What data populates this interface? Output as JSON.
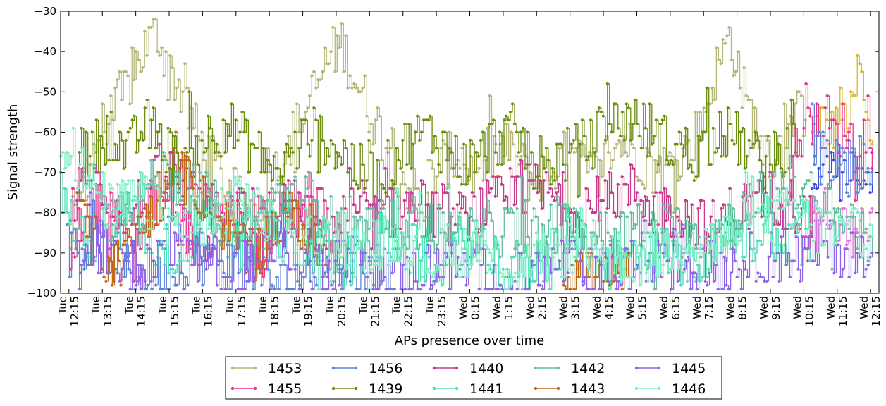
{
  "chart_data": {
    "type": "line",
    "title": "",
    "xlabel": "APs presence over time",
    "ylabel": "Signal strength",
    "ylim": [
      -100,
      -30
    ],
    "yticks": [
      -30,
      -40,
      -50,
      -60,
      -70,
      -80,
      -90,
      -100
    ],
    "x_range_hours": [
      12.0,
      36.5
    ],
    "xticks": [
      {
        "day": "Tue",
        "time": "12:15"
      },
      {
        "day": "Tue",
        "time": "13:15"
      },
      {
        "day": "Tue",
        "time": "14:15"
      },
      {
        "day": "Tue",
        "time": "15:15"
      },
      {
        "day": "Tue",
        "time": "16:15"
      },
      {
        "day": "Tue",
        "time": "17:15"
      },
      {
        "day": "Tue",
        "time": "18:15"
      },
      {
        "day": "Tue",
        "time": "19:15"
      },
      {
        "day": "Tue",
        "time": "20:15"
      },
      {
        "day": "Tue",
        "time": "21:15"
      },
      {
        "day": "Tue",
        "time": "22:15"
      },
      {
        "day": "Tue",
        "time": "23:15"
      },
      {
        "day": "Wed",
        "time": "0:15"
      },
      {
        "day": "Wed",
        "time": "1:15"
      },
      {
        "day": "Wed",
        "time": "2:15"
      },
      {
        "day": "Wed",
        "time": "3:15"
      },
      {
        "day": "Wed",
        "time": "4:15"
      },
      {
        "day": "Wed",
        "time": "5:15"
      },
      {
        "day": "Wed",
        "time": "6:15"
      },
      {
        "day": "Wed",
        "time": "7:15"
      },
      {
        "day": "Wed",
        "time": "8:15"
      },
      {
        "day": "Wed",
        "time": "9:15"
      },
      {
        "day": "Wed",
        "time": "10:15"
      },
      {
        "day": "Wed",
        "time": "11:15"
      },
      {
        "day": "Wed",
        "time": "12:15"
      }
    ],
    "grid": false,
    "legend_position": "bottom-center",
    "series": [
      {
        "name": "1453",
        "color": "#b5b87a",
        "segments": [
          {
            "start": 12.3,
            "end": 23.0,
            "values": [
              -85,
              -72,
              -60,
              -55,
              -48,
              -40,
              -35,
              -45,
              -52,
              -62,
              -68,
              -75,
              -78,
              -80,
              -72,
              -65,
              -58,
              -50,
              -42,
              -38,
              -48,
              -55,
              -62,
              -70,
              -75,
              -80
            ]
          },
          {
            "start": 23.0,
            "end": 34.3,
            "values": [
              -72,
              -68,
              -65,
              -70,
              -66,
              -64,
              -68,
              -72,
              -70,
              -66,
              -68,
              -70,
              -65,
              -62,
              -66,
              -70,
              -68,
              -64,
              -60,
              -45,
              -36,
              -52,
              -62,
              -66,
              -58,
              -54
            ]
          }
        ]
      },
      {
        "name": "1455",
        "color": "#e8348e",
        "segments": [
          {
            "start": 12.3,
            "end": 20.0,
            "values": [
              -88,
              -82,
              -78,
              -85,
              -90,
              -80,
              -76,
              -84,
              -88,
              -82,
              -78,
              -86,
              -90,
              -84,
              -80,
              -76,
              -82
            ]
          },
          {
            "start": 33.8,
            "end": 36.3,
            "values": [
              -72,
              -62,
              -58,
              -60,
              -56,
              -62,
              -58,
              -64,
              -60,
              -62
            ]
          }
        ]
      },
      {
        "name": "1456",
        "color": "#5b87d6",
        "segments": [
          {
            "start": 12.2,
            "end": 22.0,
            "values": [
              -90,
              -88,
              -94,
              -96,
              -92,
              -90,
              -94,
              -98,
              -96,
              -92,
              -94,
              -96
            ]
          },
          {
            "start": 34.5,
            "end": 36.3,
            "values": [
              -60,
              -66,
              -68,
              -70,
              -66,
              -72,
              -68,
              -70,
              -66
            ]
          }
        ]
      },
      {
        "name": "1439",
        "color": "#6b8e10",
        "segments": [
          {
            "start": 12.5,
            "end": 34.0,
            "values": [
              -70,
              -64,
              -60,
              -66,
              -58,
              -62,
              -68,
              -64,
              -60,
              -58,
              -62,
              -66,
              -70,
              -64,
              -60,
              -62,
              -66,
              -70,
              -72,
              -66,
              -62,
              -60,
              -64,
              -68,
              -66,
              -62,
              -60,
              -64,
              -68,
              -66,
              -64,
              -62,
              -58,
              -56,
              -60,
              -62,
              -64,
              -66,
              -62,
              -60,
              -64,
              -68,
              -66,
              -62
            ]
          }
        ]
      },
      {
        "name": "1440",
        "color": "#c83a8a",
        "segments": [
          {
            "start": 12.3,
            "end": 34.5,
            "values": [
              -78,
              -72,
              -76,
              -80,
              -74,
              -70,
              -76,
              -80,
              -78,
              -82,
              -80,
              -78,
              -82,
              -84,
              -80,
              -82,
              -80,
              -78,
              -80,
              -82,
              -80,
              -78,
              -76,
              -74,
              -76,
              -78,
              -80,
              -76,
              -74,
              -78,
              -80,
              -82,
              -84,
              -80,
              -78,
              -76,
              -78,
              -80
            ]
          }
        ]
      },
      {
        "name": "1441",
        "color": "#4ce0b4",
        "segments": [
          {
            "start": 12.0,
            "end": 34.5,
            "values": [
              -75,
              -88,
              -84,
              -80,
              -86,
              -90,
              -84,
              -82,
              -88,
              -86,
              -84,
              -88,
              -90,
              -92,
              -88,
              -86,
              -90,
              -92,
              -88,
              -90,
              -92,
              -94,
              -90,
              -88,
              -92,
              -94,
              -90,
              -88,
              -92,
              -90,
              -88,
              -86,
              -84,
              -86,
              -88
            ]
          }
        ]
      },
      {
        "name": "1442",
        "color": "#66bfa0",
        "segments": [
          {
            "start": 13.5,
            "end": 36.3,
            "values": [
              -80,
              -76,
              -70,
              -74,
              -80,
              -84,
              -78,
              -74,
              -82,
              -86,
              -84,
              -82,
              -84,
              -86,
              -84,
              -84,
              -85,
              -84,
              -86,
              -84,
              -85,
              -84,
              -86,
              -82,
              -76,
              -72,
              -78,
              -82,
              -86
            ]
          }
        ]
      },
      {
        "name": "1443",
        "color": "#c06818",
        "segments": [
          {
            "start": 12.6,
            "end": 20.0,
            "values": [
              -82,
              -90,
              -94,
              -84,
              -76,
              -70,
              -74,
              -80,
              -86,
              -92,
              -84,
              -80,
              -86,
              -90
            ]
          },
          {
            "start": 27.0,
            "end": 29.0,
            "values": [
              -96,
              -94,
              -98,
              -96
            ]
          }
        ]
      },
      {
        "name": "1445",
        "color": "#8e64e8",
        "segments": [
          {
            "start": 12.5,
            "end": 36.3,
            "values": [
              -92,
              -88,
              -94,
              -90,
              -86,
              -92,
              -96,
              -90,
              -88,
              -94,
              -92,
              -90,
              -94,
              -96,
              -92,
              -94,
              -96,
              -98,
              -94,
              -92,
              -96,
              -94,
              -92,
              -90,
              -92,
              -94,
              -92,
              -90,
              -92,
              -88,
              -90,
              -92
            ]
          }
        ]
      },
      {
        "name": "1446",
        "color": "#7ef0c8",
        "segments": [
          {
            "start": 12.0,
            "end": 36.3,
            "values": [
              -60,
              -72,
              -80,
              -76,
              -82,
              -86,
              -80,
              -76,
              -84,
              -88,
              -86,
              -90,
              -88,
              -86,
              -92,
              -90,
              -88,
              -94,
              -92,
              -90,
              -88,
              -90,
              -92,
              -90,
              -86,
              -88,
              -84,
              -82,
              -80,
              -84,
              -86,
              -84
            ]
          }
        ]
      }
    ],
    "extra_series": [
      {
        "color": "#d8b830",
        "start": 34.5,
        "end": 36.3,
        "values": [
          -62,
          -56,
          -58,
          -60,
          -54,
          -58,
          -56,
          -42,
          -58,
          -62
        ]
      },
      {
        "color": "#3a4ae0",
        "start": 34.5,
        "end": 36.3,
        "values": [
          -68,
          -66,
          -70,
          -66,
          -72,
          -68,
          -66,
          -70,
          -68
        ]
      },
      {
        "color": "#e870e0",
        "start": 34.5,
        "end": 36.3,
        "values": [
          -80,
          -84,
          -78,
          -86,
          -82,
          -88,
          -80,
          -84,
          -86
        ]
      }
    ]
  }
}
